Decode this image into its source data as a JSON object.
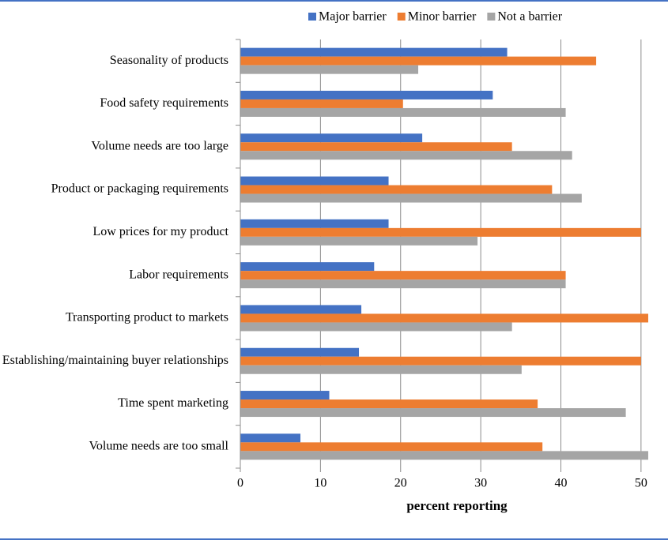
{
  "chart_data": {
    "type": "hbar",
    "x_label": "percent reporting",
    "categories": [
      "Seasonality of products",
      "Food safety requirements",
      "Volume needs are too large",
      "Product or packaging requirements",
      "Low prices for my product",
      "Labor requirements",
      "Transporting product to markets",
      "Establishing/maintaining buyer relationships",
      "Time spent marketing",
      "Volume needs are too small"
    ],
    "series": [
      {
        "name": "Major barrier",
        "color": "#4472c4",
        "values": [
          33.3,
          31.5,
          22.7,
          18.5,
          18.5,
          16.7,
          15.1,
          14.8,
          11.1,
          7.5
        ]
      },
      {
        "name": "Minor barrier",
        "color": "#ed7d31",
        "values": [
          44.4,
          20.3,
          33.9,
          38.9,
          50,
          40.6,
          50.9,
          50,
          37.1,
          37.7
        ]
      },
      {
        "name": "Not a barrier",
        "color": "#a5a5a5",
        "values": [
          22.2,
          40.6,
          41.4,
          42.6,
          29.6,
          40.6,
          33.9,
          35.1,
          48.1,
          50.9
        ]
      }
    ],
    "xlim": [
      0,
      51
    ],
    "xticks": [
      0,
      10,
      20,
      30,
      40,
      50
    ],
    "grid": true,
    "legend": "top"
  }
}
